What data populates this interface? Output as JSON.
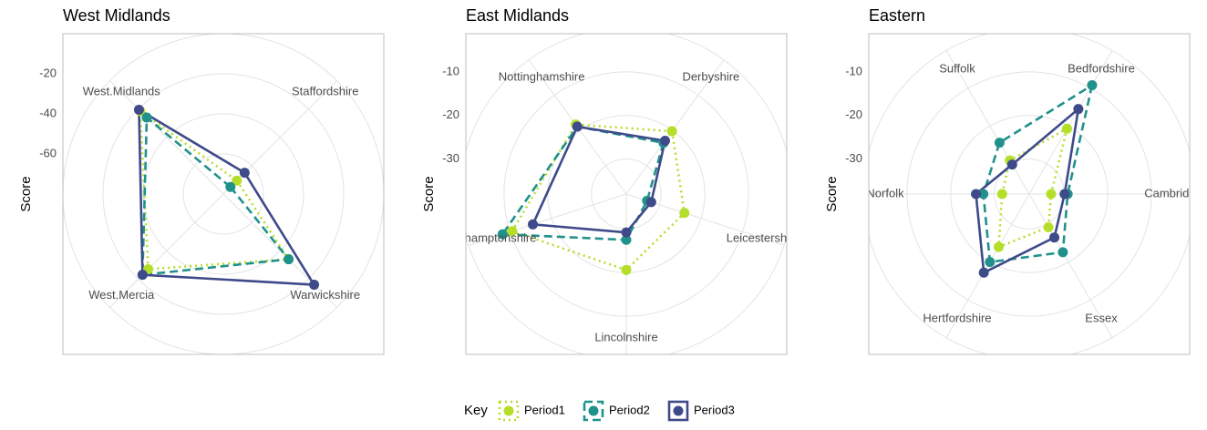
{
  "legend": {
    "title": "Key",
    "entries": [
      {
        "name": "Period1",
        "color": "#b5de2b",
        "linetype": "dotted"
      },
      {
        "name": "Period2",
        "color": "#21918c",
        "linetype": "dashed"
      },
      {
        "name": "Period3",
        "color": "#3e4a89",
        "linetype": "solid"
      }
    ]
  },
  "chart_data": [
    {
      "type": "radar",
      "title": "West Midlands",
      "y_label": "Score",
      "categories": [
        "Staffordshire",
        "Warwickshire",
        "West.Mercia",
        "West.Midlands"
      ],
      "series": [
        {
          "values": [
            -70.5,
            -34,
            -27,
            -21.4
          ]
        },
        {
          "values": [
            -75,
            -34,
            -23,
            -26
          ]
        },
        {
          "values": [
            -65,
            -16,
            -23,
            -20.5
          ]
        }
      ],
      "ylim": [
        -80,
        0
      ],
      "yticks": [
        -60,
        -40,
        -20
      ]
    },
    {
      "type": "radar",
      "title": "East Midlands",
      "y_label": "Score",
      "categories": [
        "Derbyshire",
        "Leicestershire",
        "Lincolnshire",
        "Northamptonshire",
        "Nottinghamshire"
      ],
      "series": [
        {
          "values": [
            -20.2,
            -24,
            -20.6,
            -10.5,
            -18.3
          ]
        },
        {
          "values": [
            -23.5,
            -33,
            -27.5,
            -8.2,
            -18.9
          ]
        },
        {
          "values": [
            -22.9,
            -32,
            -29.2,
            -15.5,
            -18.9
          ]
        }
      ],
      "ylim": [
        -38,
        0
      ],
      "yticks": [
        -30,
        -20,
        -10
      ]
    },
    {
      "type": "radar",
      "title": "Eastern",
      "y_label": "Score",
      "categories": [
        "Bedfordshire",
        "Cambridge",
        "Essex",
        "Hertfordshire",
        "Norfolk",
        "Suffolk"
      ],
      "series": [
        {
          "values": [
            -20.7,
            -33,
            -29.2,
            -24,
            -31.8,
            -29.1
          ]
        },
        {
          "values": [
            -9.2,
            -29.2,
            -22.6,
            -20,
            -27.5,
            -24.4
          ]
        },
        {
          "values": [
            -15.5,
            -29.9,
            -26.5,
            -17.2,
            -25.8,
            -30.2
          ]
        }
      ],
      "ylim": [
        -38,
        0
      ],
      "yticks": [
        -30,
        -20,
        -10
      ]
    }
  ]
}
